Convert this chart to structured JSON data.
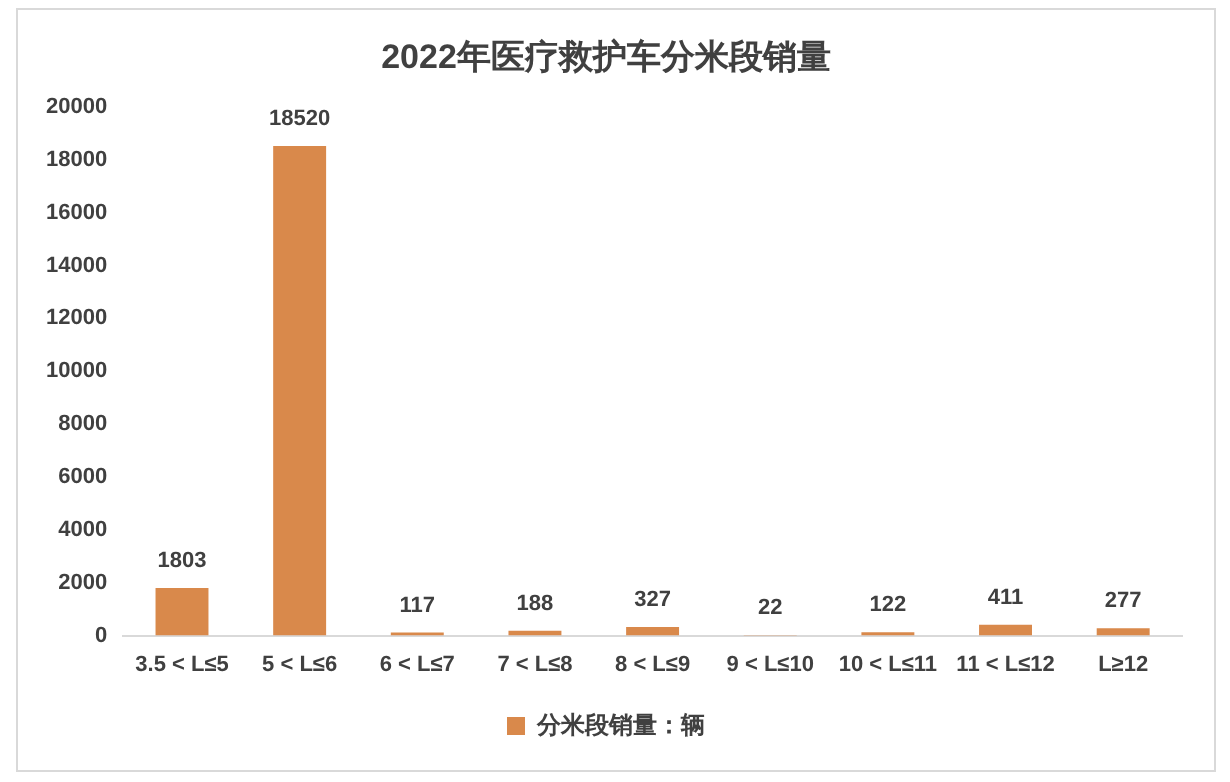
{
  "chart_data": {
    "type": "bar",
    "title": "2022年医疗救护车分米段销量",
    "categories": [
      "3.5 < L≤5",
      "5 < L≤6",
      "6 < L≤7",
      "7 < L≤8",
      "8 < L≤9",
      "9 < L≤10",
      "10 < L≤11",
      "11 < L≤12",
      "L≥12"
    ],
    "series": [
      {
        "name": "分米段销量：辆",
        "color": "#d9894b",
        "values": [
          1803,
          18520,
          117,
          188,
          327,
          22,
          122,
          411,
          277
        ]
      }
    ],
    "ylim": [
      0,
      20000
    ],
    "yticks": [
      0,
      2000,
      4000,
      6000,
      8000,
      10000,
      12000,
      14000,
      16000,
      18000,
      20000
    ],
    "grid": false,
    "legend": "bottom",
    "data_labels": true
  }
}
